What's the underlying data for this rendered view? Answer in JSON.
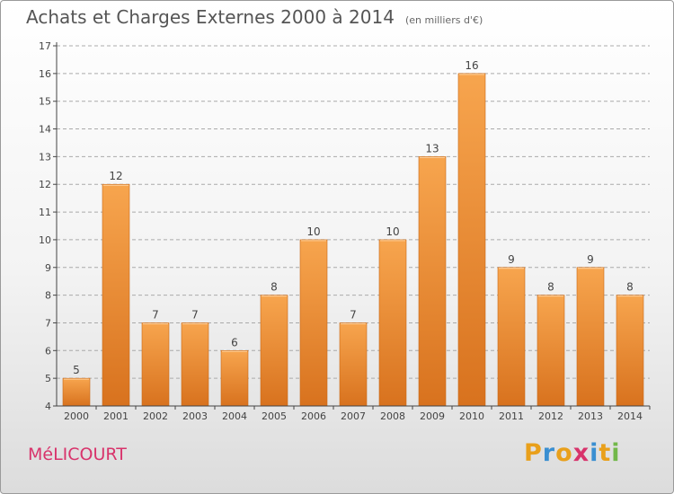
{
  "title": "Achats et Charges Externes 2000 à 2014",
  "title_unit": "(en milliers d'€)",
  "town": "MéLICOURT",
  "brand": {
    "name": "Proxiti",
    "letters": [
      {
        "ch": "P",
        "color": "#e9a01b"
      },
      {
        "ch": "r",
        "color": "#3a8fd1"
      },
      {
        "ch": "o",
        "color": "#e9a01b"
      },
      {
        "ch": "x",
        "color": "#d8336b"
      },
      {
        "ch": "i",
        "color": "#3a8fd1"
      },
      {
        "ch": "t",
        "color": "#e9a01b"
      },
      {
        "ch": "i",
        "color": "#72b84a"
      }
    ]
  },
  "colors": {
    "bar_light": "#f7a54e",
    "bar_dark": "#d8721e",
    "axis": "#444444",
    "grid": "#aaaaaa",
    "text": "#444444"
  },
  "chart_data": {
    "type": "bar",
    "categories": [
      "2000",
      "2001",
      "2002",
      "2003",
      "2004",
      "2005",
      "2006",
      "2007",
      "2008",
      "2009",
      "2010",
      "2011",
      "2012",
      "2013",
      "2014"
    ],
    "values": [
      5,
      12,
      7,
      7,
      6,
      8,
      10,
      7,
      10,
      13,
      16,
      9,
      8,
      9,
      8
    ],
    "data_labels": [
      "5",
      "12",
      "7",
      "7",
      "6",
      "8",
      "10",
      "7",
      "10",
      "13",
      "16",
      "9",
      "8",
      "9",
      "8"
    ],
    "ylim": [
      4,
      17
    ],
    "yticks": [
      4,
      5,
      6,
      7,
      8,
      9,
      10,
      11,
      12,
      13,
      14,
      15,
      16,
      17
    ],
    "grid": true,
    "xlabel": "",
    "ylabel": ""
  }
}
